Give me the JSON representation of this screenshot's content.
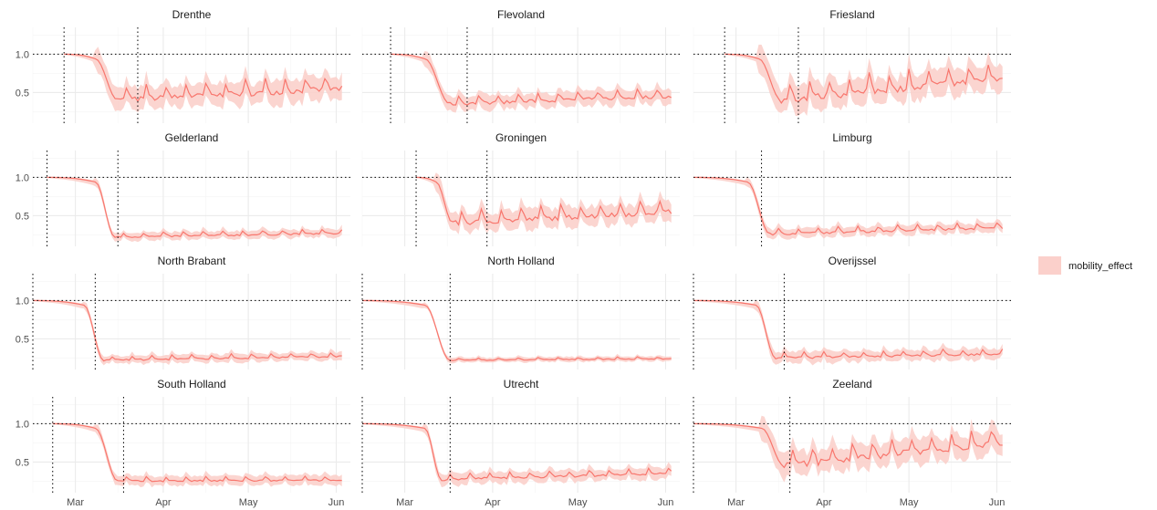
{
  "colors": {
    "line": "#F8766D",
    "ribbon": "#FBD0CB",
    "grid_major": "#EBEBEB",
    "grid_minor": "#F4F4F4",
    "text": "#4D4D4D"
  },
  "chart_data": {
    "type": "line",
    "layout": "facet grid 4 rows x 3 columns, shared axes",
    "x_axis": {
      "type": "date",
      "ticks": [
        "2020-03-01",
        "2020-04-01",
        "2020-05-01",
        "2020-06-01"
      ],
      "tick_labels": [
        "Mar",
        "Apr",
        "May",
        "Jun"
      ],
      "range": [
        "2020-02-15",
        "2020-06-06"
      ]
    },
    "y_axis": {
      "ticks": [
        0.5,
        1.0
      ],
      "tick_labels": [
        "0.5",
        "1.0"
      ],
      "range": [
        0.1,
        1.35
      ]
    },
    "reference_line_y": 1.0,
    "legend": {
      "label": "mobility_effect",
      "position": "right"
    },
    "grid": true,
    "panels": [
      {
        "name": "Drenthe",
        "start": "2020-02-26",
        "lines": [
          "2020-02-26",
          "2020-03-23"
        ],
        "plateau": 0.4,
        "end": 0.55,
        "band": 0.14,
        "noise": 0.1,
        "drop_start": "2020-03-08",
        "drop_end": "2020-03-16"
      },
      {
        "name": "Flevoland",
        "start": "2020-02-25",
        "lines": [
          "2020-02-25",
          "2020-03-23"
        ],
        "plateau": 0.35,
        "end": 0.45,
        "band": 0.09,
        "noise": 0.06,
        "drop_start": "2020-03-08",
        "drop_end": "2020-03-17"
      },
      {
        "name": "Friesland",
        "start": "2020-02-26",
        "lines": [
          "2020-02-26",
          "2020-03-23"
        ],
        "plateau": 0.4,
        "end": 0.68,
        "band": 0.16,
        "noise": 0.13,
        "drop_start": "2020-03-09",
        "drop_end": "2020-03-17"
      },
      {
        "name": "Gelderland",
        "start": "2020-02-20",
        "lines": [
          "2020-02-20",
          "2020-03-16"
        ],
        "plateau": 0.22,
        "end": 0.27,
        "band": 0.05,
        "noise": 0.03,
        "drop_start": "2020-03-08",
        "drop_end": "2020-03-15"
      },
      {
        "name": "Groningen",
        "start": "2020-03-05",
        "lines": [
          "2020-03-05",
          "2020-03-30"
        ],
        "plateau": 0.4,
        "end": 0.55,
        "band": 0.12,
        "noise": 0.09,
        "drop_start": "2020-03-12",
        "drop_end": "2020-03-18"
      },
      {
        "name": "Limburg",
        "start": "2020-02-15",
        "lines": [
          "2020-03-10"
        ],
        "plateau": 0.26,
        "end": 0.34,
        "band": 0.06,
        "noise": 0.04,
        "drop_start": "2020-03-05",
        "drop_end": "2020-03-13"
      },
      {
        "name": "North Brabant",
        "start": "2020-02-15",
        "lines": [
          "2020-02-15",
          "2020-03-08"
        ],
        "plateau": 0.22,
        "end": 0.27,
        "band": 0.05,
        "noise": 0.03,
        "drop_start": "2020-03-04",
        "drop_end": "2020-03-11"
      },
      {
        "name": "North Holland",
        "start": "2020-02-15",
        "lines": [
          "2020-02-15",
          "2020-03-17"
        ],
        "plateau": 0.22,
        "end": 0.24,
        "band": 0.03,
        "noise": 0.015,
        "drop_start": "2020-03-08",
        "drop_end": "2020-03-17"
      },
      {
        "name": "Overijssel",
        "start": "2020-02-15",
        "lines": [
          "2020-02-15",
          "2020-03-18"
        ],
        "plateau": 0.25,
        "end": 0.3,
        "band": 0.07,
        "noise": 0.04,
        "drop_start": "2020-03-08",
        "drop_end": "2020-03-15"
      },
      {
        "name": "South Holland",
        "start": "2020-02-22",
        "lines": [
          "2020-02-22",
          "2020-03-18"
        ],
        "plateau": 0.25,
        "end": 0.26,
        "band": 0.06,
        "noise": 0.03,
        "drop_start": "2020-03-08",
        "drop_end": "2020-03-16"
      },
      {
        "name": "Utrecht",
        "start": "2020-02-15",
        "lines": [
          "2020-02-15",
          "2020-03-17"
        ],
        "plateau": 0.27,
        "end": 0.35,
        "band": 0.07,
        "noise": 0.04,
        "drop_start": "2020-03-08",
        "drop_end": "2020-03-14"
      },
      {
        "name": "Zeeland",
        "start": "2020-02-15",
        "lines": [
          "2020-02-15",
          "2020-03-20"
        ],
        "plateau": 0.45,
        "end": 0.75,
        "band": 0.15,
        "noise": 0.12,
        "drop_start": "2020-03-10",
        "drop_end": "2020-03-18"
      }
    ]
  }
}
